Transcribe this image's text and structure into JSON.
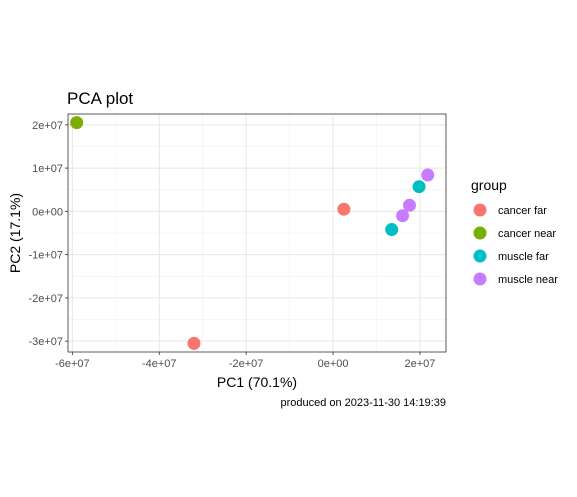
{
  "chart_data": {
    "type": "scatter",
    "title": "PCA plot",
    "xlabel": "PC1 (70.1%)",
    "ylabel": "PC2 (17.1%)",
    "caption": "produced on 2023-11-30 14:19:39",
    "xlim": [
      -61000000,
      26000000
    ],
    "ylim": [
      -32500000,
      22500000
    ],
    "x_ticks": [
      {
        "value": -60000000,
        "label": "-6e+07"
      },
      {
        "value": -40000000,
        "label": "-4e+07"
      },
      {
        "value": -20000000,
        "label": "-2e+07"
      },
      {
        "value": 0,
        "label": "0e+00"
      },
      {
        "value": 20000000,
        "label": "2e+07"
      }
    ],
    "y_ticks": [
      {
        "value": 20000000,
        "label": "2e+07"
      },
      {
        "value": 10000000,
        "label": "1e+07"
      },
      {
        "value": 0,
        "label": "0e+00"
      },
      {
        "value": -10000000,
        "label": "-1e+07"
      },
      {
        "value": -20000000,
        "label": "-2e+07"
      },
      {
        "value": -30000000,
        "label": "-3e+07"
      }
    ],
    "grid": true,
    "legend": {
      "title": "group",
      "placement": "right",
      "entries": [
        {
          "name": "cancer far",
          "color": "#F8766D"
        },
        {
          "name": "cancer near",
          "color": "#7CAE00"
        },
        {
          "name": "muscle far",
          "color": "#00BFC4"
        },
        {
          "name": "muscle near",
          "color": "#C77CFF"
        }
      ]
    },
    "series": [
      {
        "name": "cancer far",
        "color": "#F8766D",
        "points": [
          {
            "x": 2500000,
            "y": 500000
          },
          {
            "x": -32000000,
            "y": -30500000
          }
        ]
      },
      {
        "name": "cancer near",
        "color": "#7CAE00",
        "points": [
          {
            "x": -59000000,
            "y": 20500000
          }
        ]
      },
      {
        "name": "muscle far",
        "color": "#00BFC4",
        "points": [
          {
            "x": 13500000,
            "y": -4200000
          },
          {
            "x": 19800000,
            "y": 5700000
          }
        ]
      },
      {
        "name": "muscle near",
        "color": "#C77CFF",
        "points": [
          {
            "x": 16000000,
            "y": -1000000
          },
          {
            "x": 17600000,
            "y": 1400000
          },
          {
            "x": 21800000,
            "y": 8400000
          }
        ]
      }
    ]
  }
}
